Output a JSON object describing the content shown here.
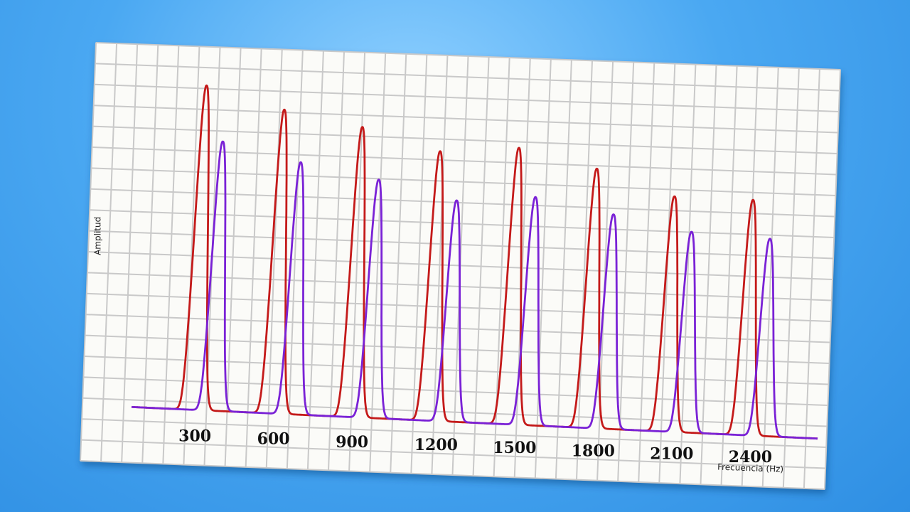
{
  "chart_data": {
    "type": "line",
    "title": "",
    "xlabel": "Frecuencia (Hz)",
    "ylabel": "Amplitud",
    "x_ticks": [
      "300",
      "600",
      "900",
      "1200",
      "1500",
      "1800",
      "2100",
      "2400"
    ],
    "xlim": [
      0,
      2700
    ],
    "ylim": [
      0,
      100
    ],
    "grid": true,
    "legend": "none",
    "series": [
      {
        "color": "#c41a1a",
        "peaks": [
          {
            "x": 300,
            "y": 94
          },
          {
            "x": 600,
            "y": 88
          },
          {
            "x": 900,
            "y": 84
          },
          {
            "x": 1200,
            "y": 78
          },
          {
            "x": 1500,
            "y": 80
          },
          {
            "x": 1800,
            "y": 75
          },
          {
            "x": 2100,
            "y": 68
          },
          {
            "x": 2400,
            "y": 68
          }
        ]
      },
      {
        "color": "#7a22d6",
        "peaks": [
          {
            "x": 370,
            "y": 78
          },
          {
            "x": 670,
            "y": 73
          },
          {
            "x": 970,
            "y": 69
          },
          {
            "x": 1270,
            "y": 64
          },
          {
            "x": 1570,
            "y": 66
          },
          {
            "x": 1870,
            "y": 62
          },
          {
            "x": 2170,
            "y": 58
          },
          {
            "x": 2470,
            "y": 57
          }
        ]
      }
    ]
  }
}
